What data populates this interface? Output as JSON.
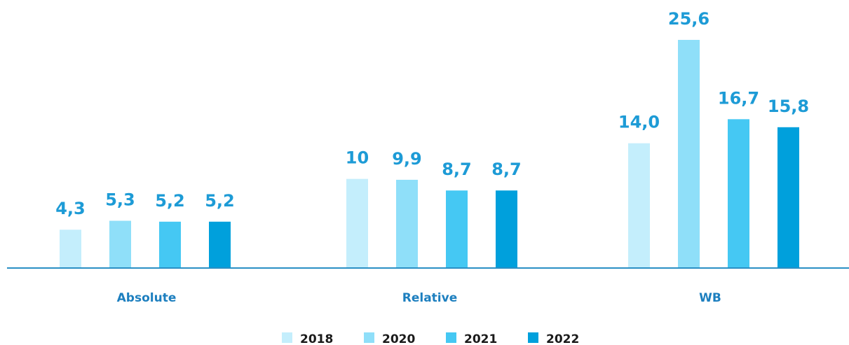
{
  "chart_data": {
    "type": "bar",
    "categories": [
      "Absolute",
      "Relative",
      "WB"
    ],
    "series": [
      {
        "name": "2018",
        "values": [
          4.3,
          10,
          14.0
        ],
        "labels": [
          "4,3",
          "10",
          "14,0"
        ],
        "color": "#c4eefc"
      },
      {
        "name": "2020",
        "values": [
          5.3,
          9.9,
          25.6
        ],
        "labels": [
          "5,3",
          "9,9",
          "25,6"
        ],
        "color": "#8fdff9"
      },
      {
        "name": "2021",
        "values": [
          5.2,
          8.7,
          16.7
        ],
        "labels": [
          "5,2",
          "8,7",
          "16,7"
        ],
        "color": "#45c8f3"
      },
      {
        "name": "2022",
        "values": [
          5.2,
          8.7,
          15.8
        ],
        "labels": [
          "5,2",
          "8,7",
          "15,8"
        ],
        "color": "#00a0dc"
      }
    ],
    "title": "",
    "xlabel": "",
    "ylabel": "",
    "ylim": [
      0,
      26.5
    ],
    "grid": false,
    "legend_position": "bottom-center",
    "colors": {
      "value_label": "#1d9bd6",
      "category_label": "#1d7fbf",
      "axis_line": "#2a8fc4",
      "legend_text": "#1a1a1a"
    }
  }
}
